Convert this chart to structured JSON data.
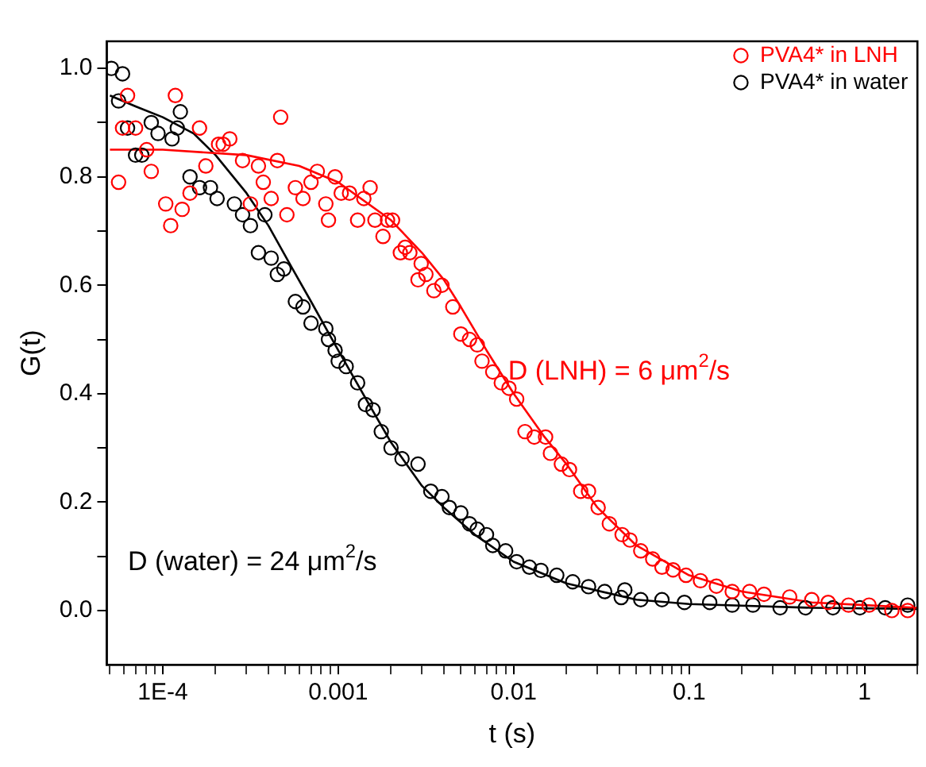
{
  "chart_data": {
    "type": "scatter",
    "xlabel": "t (s)",
    "ylabel": "G(t)",
    "log": "x",
    "marker": "circle",
    "legend": "top right",
    "grid": false,
    "xlim": [
      4.8e-05,
      2
    ],
    "ylim": [
      -0.1,
      1.05
    ],
    "xticks": [
      {
        "value": 0.0001,
        "label": "1E-4"
      },
      0.001,
      0.01,
      0.1,
      1,
      {
        "value": 5e-05,
        "label": null
      },
      {
        "value": 6e-05,
        "label": null
      },
      {
        "value": 7e-05,
        "label": null
      },
      {
        "value": 8e-05,
        "label": null
      },
      {
        "value": 9e-05,
        "label": null
      },
      {
        "value": 0.0002,
        "label": null
      },
      {
        "value": 0.0003,
        "label": null
      },
      {
        "value": 0.0004,
        "label": null
      },
      {
        "value": 0.0005,
        "label": null
      },
      {
        "value": 0.0006,
        "label": null
      },
      {
        "value": 0.0007,
        "label": null
      },
      {
        "value": 0.0008,
        "label": null
      },
      {
        "value": 0.0009,
        "label": null
      },
      {
        "value": 0.002,
        "label": null
      },
      {
        "value": 0.003,
        "label": null
      },
      {
        "value": 0.004,
        "label": null
      },
      {
        "value": 0.005,
        "label": null
      },
      {
        "value": 0.006,
        "label": null
      },
      {
        "value": 0.007,
        "label": null
      },
      {
        "value": 0.008,
        "label": null
      },
      {
        "value": 0.009,
        "label": null
      },
      {
        "value": 0.02,
        "label": null
      },
      {
        "value": 0.03,
        "label": null
      },
      {
        "value": 0.04,
        "label": null
      },
      {
        "value": 0.05,
        "label": null
      },
      {
        "value": 0.06,
        "label": null
      },
      {
        "value": 0.07,
        "label": null
      },
      {
        "value": 0.08,
        "label": null
      },
      {
        "value": 0.09,
        "label": null
      },
      {
        "value": 0.2,
        "label": null
      },
      {
        "value": 0.3,
        "label": null
      },
      {
        "value": 0.4,
        "label": null
      },
      {
        "value": 0.5,
        "label": null
      },
      {
        "value": 0.6,
        "label": null
      },
      {
        "value": 0.7,
        "label": null
      },
      {
        "value": 0.8,
        "label": null
      },
      {
        "value": 0.9,
        "label": null
      },
      {
        "value": 2,
        "label": null
      }
    ],
    "yticks": [
      {
        "value": 0,
        "label": "0.0"
      },
      {
        "value": 0.2,
        "label": "0.2"
      },
      {
        "value": 0.4,
        "label": "0.4"
      },
      {
        "value": 0.6,
        "label": "0.6"
      },
      {
        "value": 0.8,
        "label": "0.8"
      },
      {
        "value": 1,
        "label": "1.0"
      },
      {
        "value": 0.1,
        "label": null
      },
      {
        "value": 0.3,
        "label": null
      },
      {
        "value": 0.5,
        "label": null
      },
      {
        "value": 0.7,
        "label": null
      },
      {
        "value": 0.9,
        "label": null
      }
    ],
    "series": [
      {
        "name": "PVA4* in LNH",
        "color": "#ff0000",
        "x": [
          5.6e-05,
          5.9e-05,
          6.3e-05,
          7e-05,
          8.1e-05,
          8.6e-05,
          0.000104,
          0.000111,
          0.000118,
          0.000129,
          0.000143,
          0.000162,
          0.000176,
          0.000208,
          0.000221,
          0.000241,
          0.000285,
          0.000316,
          0.000351,
          0.000374,
          0.000415,
          0.00045,
          0.00047,
          0.00051,
          0.00057,
          0.00063,
          0.0007,
          0.00076,
          0.00085,
          0.00088,
          0.00096,
          0.00104,
          0.00116,
          0.00129,
          0.0014,
          0.00152,
          0.00162,
          0.0018,
          0.00191,
          0.00204,
          0.00226,
          0.00241,
          0.00256,
          0.00285,
          0.00297,
          0.00316,
          0.00351,
          0.0039,
          0.0045,
          0.005,
          0.0056,
          0.0062,
          0.0066,
          0.0076,
          0.0085,
          0.0094,
          0.0104,
          0.0116,
          0.0131,
          0.0152,
          0.0162,
          0.0187,
          0.0208,
          0.0241,
          0.0267,
          0.0303,
          0.0351,
          0.0415,
          0.046,
          0.053,
          0.062,
          0.07,
          0.081,
          0.096,
          0.116,
          0.143,
          0.176,
          0.221,
          0.267,
          0.374,
          0.5,
          0.62,
          0.81,
          1.06,
          1.43,
          1.76
        ],
        "values": [
          0.79,
          0.89,
          0.95,
          0.89,
          0.85,
          0.81,
          0.75,
          0.71,
          0.95,
          0.74,
          0.77,
          0.89,
          0.82,
          0.86,
          0.86,
          0.87,
          0.83,
          0.75,
          0.82,
          0.79,
          0.76,
          0.83,
          0.91,
          0.73,
          0.78,
          0.76,
          0.79,
          0.81,
          0.75,
          0.72,
          0.8,
          0.77,
          0.77,
          0.72,
          0.76,
          0.78,
          0.72,
          0.69,
          0.72,
          0.72,
          0.66,
          0.67,
          0.66,
          0.61,
          0.64,
          0.62,
          0.59,
          0.6,
          0.56,
          0.51,
          0.5,
          0.49,
          0.46,
          0.44,
          0.42,
          0.41,
          0.39,
          0.33,
          0.32,
          0.32,
          0.29,
          0.27,
          0.26,
          0.22,
          0.22,
          0.19,
          0.16,
          0.14,
          0.13,
          0.11,
          0.095,
          0.08,
          0.075,
          0.065,
          0.055,
          0.045,
          0.035,
          0.035,
          0.03,
          0.025,
          0.02,
          0.015,
          0.01,
          0.01,
          0.0,
          0.0
        ]
      },
      {
        "name": "PVA4* in water",
        "color": "#000000",
        "x": [
          5.1e-05,
          5.6e-05,
          5.9e-05,
          6.3e-05,
          7e-05,
          7.6e-05,
          8.6e-05,
          9.4e-05,
          0.000113,
          0.000121,
          0.000126,
          0.000143,
          0.000162,
          0.000187,
          0.000204,
          0.000256,
          0.000285,
          0.000316,
          0.000351,
          0.000382,
          0.000415,
          0.00045,
          0.00049,
          0.00057,
          0.00063,
          0.0007,
          0.00085,
          0.00088,
          0.00096,
          0.001,
          0.00111,
          0.00129,
          0.00143,
          0.00158,
          0.00176,
          0.002,
          0.00231,
          0.00285,
          0.00337,
          0.0039,
          0.0043,
          0.005,
          0.0056,
          0.0062,
          0.007,
          0.0076,
          0.009,
          0.0104,
          0.0123,
          0.0143,
          0.0176,
          0.0217,
          0.0267,
          0.033,
          0.041,
          0.043,
          0.053,
          0.07,
          0.094,
          0.131,
          0.176,
          0.231,
          0.33,
          0.46,
          0.66,
          0.94,
          1.31,
          1.76
        ],
        "values": [
          1.0,
          0.94,
          0.99,
          0.89,
          0.84,
          0.84,
          0.9,
          0.88,
          0.87,
          0.89,
          0.92,
          0.8,
          0.78,
          0.78,
          0.76,
          0.75,
          0.73,
          0.71,
          0.66,
          0.73,
          0.65,
          0.62,
          0.63,
          0.57,
          0.56,
          0.53,
          0.52,
          0.5,
          0.48,
          0.46,
          0.45,
          0.42,
          0.38,
          0.37,
          0.33,
          0.3,
          0.28,
          0.27,
          0.22,
          0.21,
          0.19,
          0.18,
          0.16,
          0.15,
          0.14,
          0.12,
          0.11,
          0.09,
          0.08,
          0.074,
          0.065,
          0.053,
          0.044,
          0.035,
          0.024,
          0.038,
          0.02,
          0.02,
          0.015,
          0.015,
          0.01,
          0.01,
          0.005,
          0.005,
          0.005,
          0.005,
          0.005,
          0.01
        ]
      },
      {
        "type": "line",
        "color": "#ff0000",
        "marker": "none",
        "line_style": "solid",
        "x": [
          5e-05,
          0.0001,
          0.0003,
          0.0006,
          0.001,
          0.002,
          0.003,
          0.004,
          0.005,
          0.007,
          0.01,
          0.015,
          0.02,
          0.03,
          0.05,
          0.1,
          0.2,
          0.5,
          1,
          2
        ],
        "values": [
          0.85,
          0.85,
          0.84,
          0.82,
          0.79,
          0.72,
          0.66,
          0.61,
          0.56,
          0.48,
          0.4,
          0.32,
          0.27,
          0.19,
          0.12,
          0.065,
          0.035,
          0.015,
          0.01,
          0.005
        ]
      },
      {
        "type": "line",
        "color": "#000000",
        "marker": "none",
        "line_style": "solid",
        "x": [
          5e-05,
          7e-05,
          0.0001,
          0.00015,
          0.0002,
          0.0003,
          0.0004,
          0.00055,
          0.0007,
          0.001,
          0.0015,
          0.002,
          0.003,
          0.004,
          0.006,
          0.01,
          0.02,
          0.05,
          0.1,
          0.5,
          2
        ],
        "values": [
          0.95,
          0.93,
          0.91,
          0.88,
          0.84,
          0.77,
          0.71,
          0.63,
          0.57,
          0.48,
          0.38,
          0.31,
          0.23,
          0.19,
          0.14,
          0.09,
          0.05,
          0.02,
          0.012,
          0.005,
          0.003
        ]
      }
    ],
    "annotations": [
      "D (LNH) = 6 μm$^{2}$/s",
      "D (water) = 24 μm$^{2}$/s"
    ]
  }
}
